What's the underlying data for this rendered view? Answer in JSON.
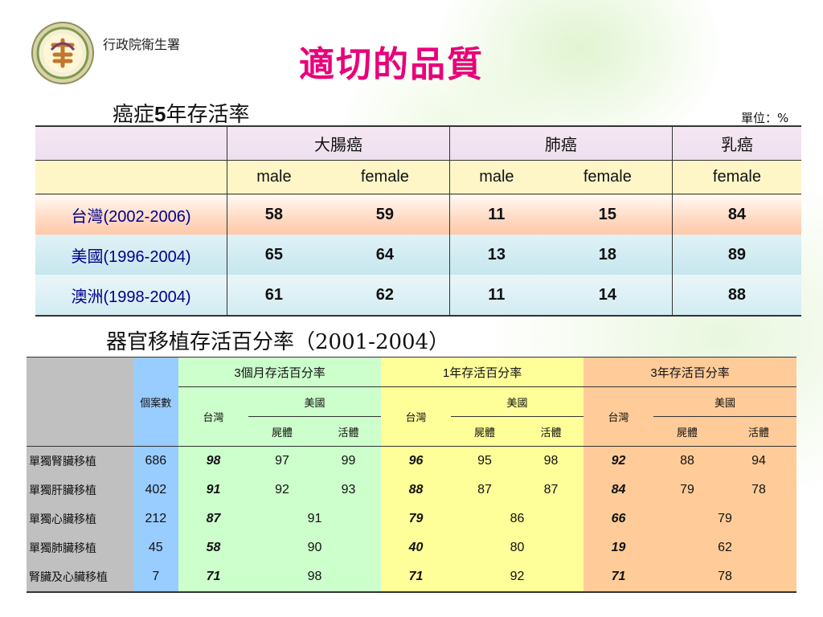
{
  "header": {
    "org": "行政院衛生署",
    "title": "適切的品質"
  },
  "cancer": {
    "subtitle_prefix": "癌症",
    "subtitle_num": "5",
    "subtitle_suffix": "年存活率",
    "unit": "單位：%",
    "groups": [
      "大腸癌",
      "肺癌",
      "乳癌"
    ],
    "sexes": [
      "male",
      "female",
      "male",
      "female",
      "female"
    ],
    "rows": [
      {
        "label": "台灣(2002-2006)",
        "values": [
          "58",
          "59",
          "11",
          "15",
          "84"
        ]
      },
      {
        "label": "美國(1996-2004)",
        "values": [
          "65",
          "64",
          "13",
          "18",
          "89"
        ]
      },
      {
        "label": "澳洲(1998-2004)",
        "values": [
          "61",
          "62",
          "11",
          "14",
          "88"
        ]
      }
    ]
  },
  "transplant": {
    "subtitle": "器官移植存活百分率（2001-2004）",
    "cases_header": "個案數",
    "periods": [
      "3個月存活百分率",
      "1年存活百分率",
      "3年存活百分率"
    ],
    "taiwan": "台灣",
    "usa": "美國",
    "cadaver": "屍體",
    "living": "活體",
    "rows": [
      {
        "label": "單獨腎臟移植",
        "cases": "686",
        "v": [
          "98",
          "97",
          "99",
          "96",
          "95",
          "98",
          "92",
          "88",
          "94"
        ]
      },
      {
        "label": "單獨肝臟移植",
        "cases": "402",
        "v": [
          "91",
          "92",
          "93",
          "88",
          "87",
          "87",
          "84",
          "79",
          "78"
        ]
      },
      {
        "label": "單獨心臟移植",
        "cases": "212",
        "v": [
          "87",
          "91",
          "79",
          "86",
          "66",
          "79"
        ]
      },
      {
        "label": "單獨肺臟移植",
        "cases": "45",
        "v": [
          "58",
          "90",
          "40",
          "80",
          "19",
          "62"
        ]
      },
      {
        "label": "腎臟及心臟移植",
        "cases": "7",
        "v": [
          "71",
          "98",
          "71",
          "92",
          "71",
          "78"
        ]
      }
    ]
  }
}
